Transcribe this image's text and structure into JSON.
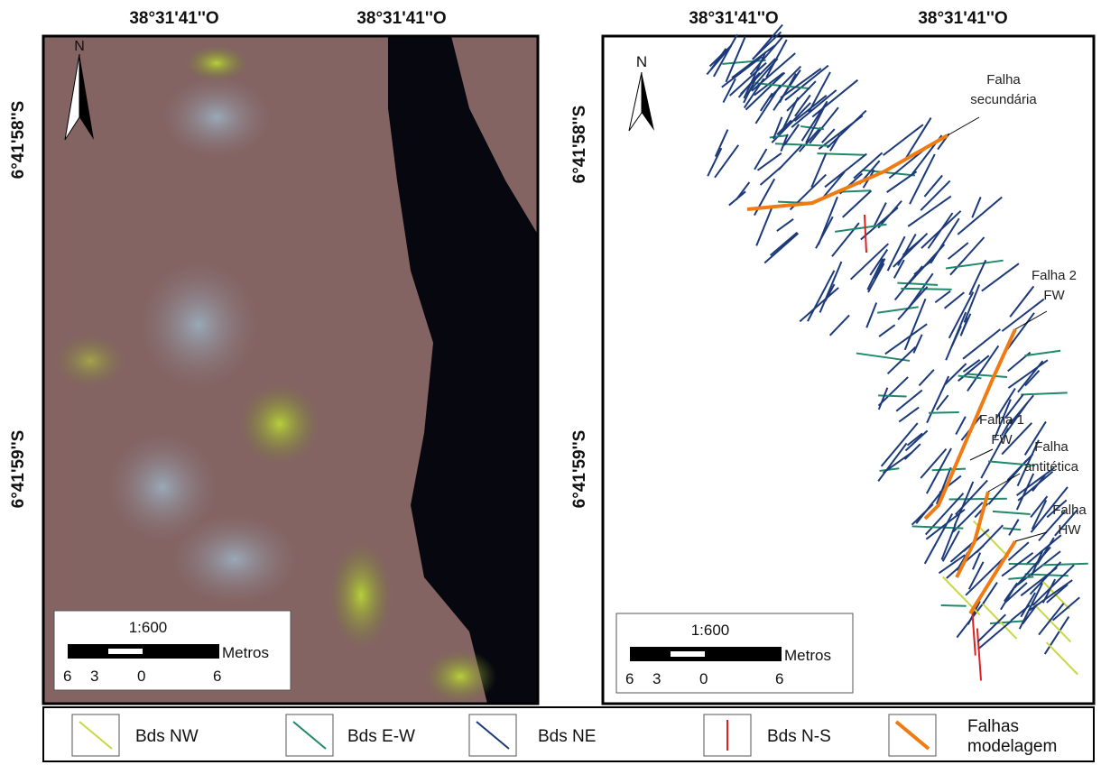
{
  "left_panel": {
    "coord_top": [
      "38°31'41''O",
      "38°31'41''O"
    ],
    "coord_side": [
      "6°41'58''S",
      "6°41'59''S"
    ],
    "north": "N",
    "scale": {
      "ratio": "1:600",
      "unit": "Metros",
      "labels": [
        "6",
        "3",
        "0",
        "6"
      ]
    }
  },
  "right_panel": {
    "coord_top": [
      "38°31'41''O",
      "38°31'41''O"
    ],
    "coord_side": [
      "6°41'58''S",
      "6°41'59''S"
    ],
    "north": "N",
    "scale": {
      "ratio": "1:600",
      "unit": "Metros",
      "labels": [
        "6",
        "3",
        "0",
        "6"
      ]
    },
    "annotations": [
      [
        "Falha",
        "secundária"
      ],
      [
        "Falha 2",
        "FW"
      ],
      [
        "Falha 1",
        "FW"
      ],
      [
        "Falha",
        "antitética"
      ],
      [
        "Falha",
        "HW"
      ]
    ]
  },
  "legend": [
    {
      "label": [
        "Bds NW"
      ],
      "color": "#c9d844"
    },
    {
      "label": [
        "Bds E-W"
      ],
      "color": "#1f8a6a"
    },
    {
      "label": [
        "Bds NE"
      ],
      "color": "#1c3a7a"
    },
    {
      "label": [
        "Bds N-S"
      ],
      "color": "#e02020"
    },
    {
      "label": [
        "Falhas",
        "modelagem"
      ],
      "color": "#f07b12"
    }
  ]
}
